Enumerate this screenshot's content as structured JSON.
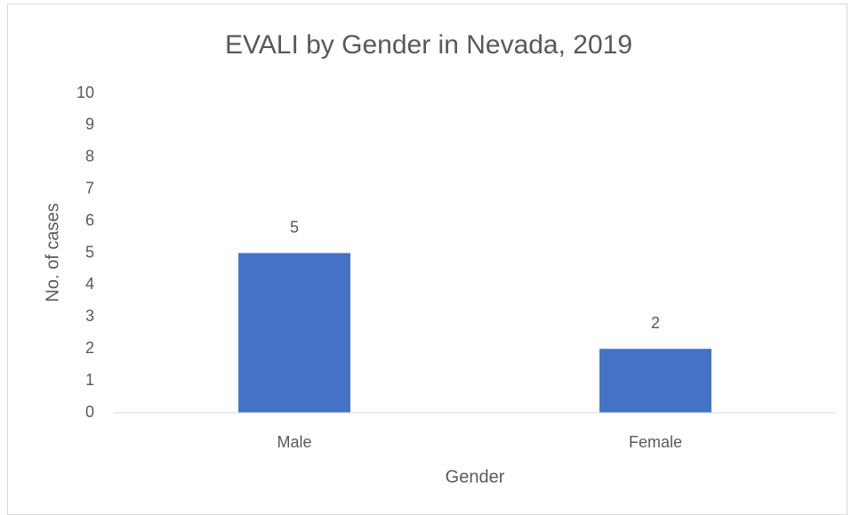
{
  "chart_data": {
    "type": "bar",
    "title": "EVALI by Gender in Nevada, 2019",
    "x_label": "Gender",
    "y_label": "No. of cases",
    "categories": [
      "Male",
      "Female"
    ],
    "values": [
      5,
      2
    ],
    "color": "#4472c4",
    "ylim": [
      0,
      10
    ],
    "yticks": [
      0,
      1,
      2,
      3,
      4,
      5,
      6,
      7,
      8,
      9,
      10
    ],
    "grid": false
  }
}
